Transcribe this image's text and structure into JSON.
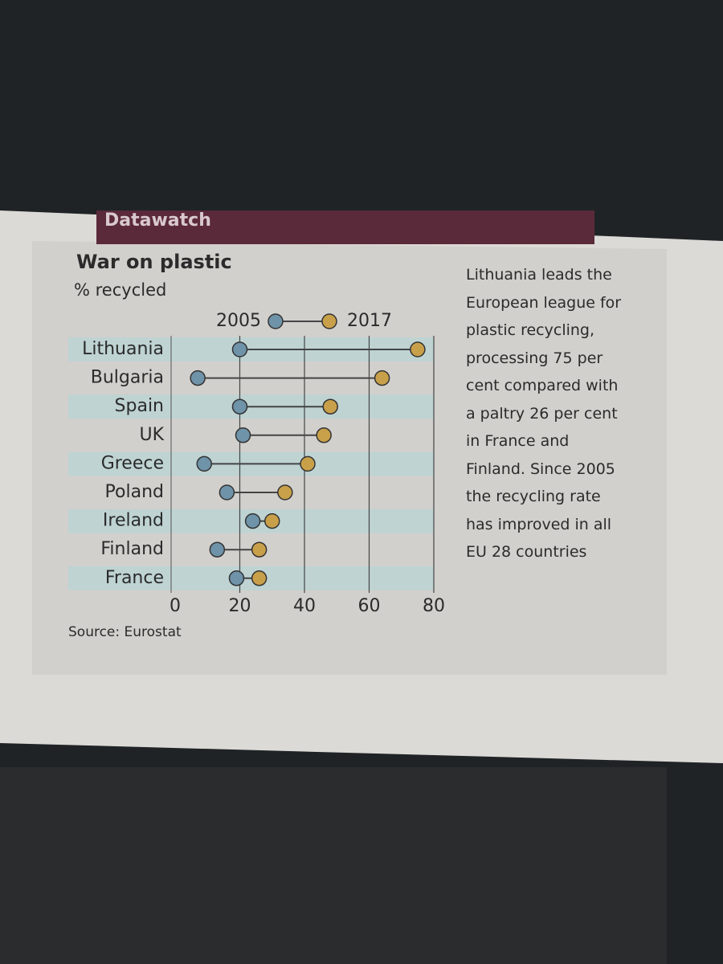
{
  "header": "Datawatch",
  "chart_data": {
    "type": "dumbbell",
    "title": "War on plastic",
    "subtitle": "% recycled",
    "categories": [
      "Lithuania",
      "Bulgaria",
      "Spain",
      "UK",
      "Greece",
      "Poland",
      "Ireland",
      "Finland",
      "France"
    ],
    "series": [
      {
        "name": "2005",
        "color": "#6f93a8",
        "values": [
          20,
          7,
          20,
          21,
          9,
          16,
          24,
          13,
          19
        ]
      },
      {
        "name": "2017",
        "color": "#c9a04a",
        "values": [
          75,
          64,
          48,
          46,
          41,
          34,
          30,
          26,
          26
        ]
      }
    ],
    "xlim": [
      0,
      80
    ],
    "xticks": [
      0,
      20,
      40,
      60,
      80
    ],
    "grid": true,
    "source": "Source: Eurostat",
    "annotation": "Lithuania leads the European league for plastic recycling, processing 75 per cent compared with a paltry 26 per cent in France and Finland. Since 2005 the recycling rate has improved in all EU 28 countries"
  }
}
